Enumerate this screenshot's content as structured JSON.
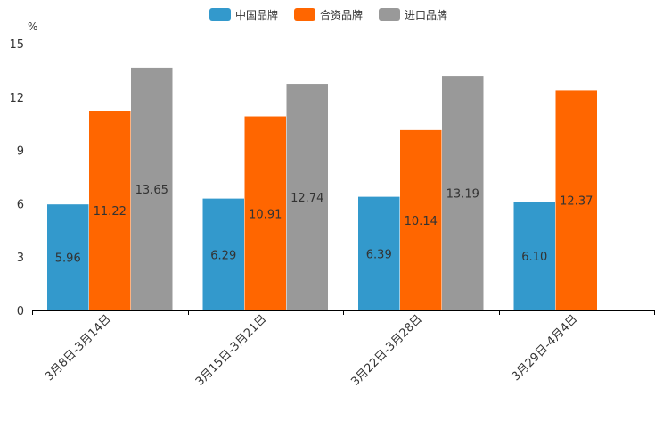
{
  "chart_data": {
    "type": "bar",
    "unit_label": "%",
    "categories": [
      "3月8日-3月14日",
      "3月15日-3月21日",
      "3月22日-3月28日",
      "3月29日-4月4日"
    ],
    "series": [
      {
        "name": "中国品牌",
        "color": "#3399cc",
        "values": [
          5.96,
          6.29,
          6.39,
          6.1
        ],
        "labels": [
          "5.96",
          "6.29",
          "6.39",
          "6.10"
        ]
      },
      {
        "name": "合资品牌",
        "color": "#ff6600",
        "values": [
          11.22,
          10.91,
          10.14,
          12.37
        ],
        "labels": [
          "11.22",
          "10.91",
          "10.14",
          "12.37"
        ]
      },
      {
        "name": "进口品牌",
        "color": "#999999",
        "values": [
          13.65,
          12.74,
          13.19,
          null
        ],
        "labels": [
          "13.65",
          "12.74",
          "13.19",
          null
        ]
      }
    ],
    "ylim": [
      0,
      15
    ],
    "yticks": [
      "0",
      "3",
      "6",
      "9",
      "12",
      "15"
    ],
    "legend_position": "top-center",
    "grid": false
  }
}
